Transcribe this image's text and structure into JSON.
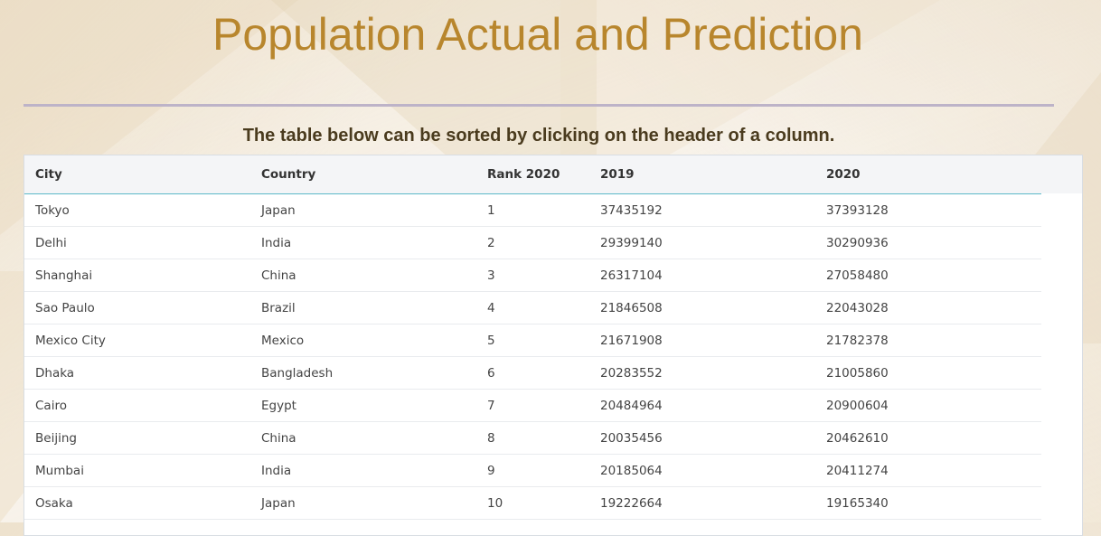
{
  "page": {
    "title": "Population Actual and Prediction",
    "subtitle": "The table below can be sorted by clicking on the header of a column."
  },
  "table": {
    "headers": [
      "City",
      "Country",
      "Rank 2020",
      "2019",
      "2020"
    ],
    "rows": [
      [
        "Tokyo",
        "Japan",
        "1",
        "37435192",
        "37393128"
      ],
      [
        "Delhi",
        "India",
        "2",
        "29399140",
        "30290936"
      ],
      [
        "Shanghai",
        "China",
        "3",
        "26317104",
        "27058480"
      ],
      [
        "Sao Paulo",
        "Brazil",
        "4",
        "21846508",
        "22043028"
      ],
      [
        "Mexico City",
        "Mexico",
        "5",
        "21671908",
        "21782378"
      ],
      [
        "Dhaka",
        "Bangladesh",
        "6",
        "20283552",
        "21005860"
      ],
      [
        "Cairo",
        "Egypt",
        "7",
        "20484964",
        "20900604"
      ],
      [
        "Beijing",
        "China",
        "8",
        "20035456",
        "20462610"
      ],
      [
        "Mumbai",
        "India",
        "9",
        "20185064",
        "20411274"
      ],
      [
        "Osaka",
        "Japan",
        "10",
        "19222664",
        "19165340"
      ]
    ]
  },
  "colors": {
    "title": "#b8862d",
    "subtitle": "#4a3b1e",
    "rule": "#bdb3c8",
    "header_border": "#5bb8c9"
  }
}
